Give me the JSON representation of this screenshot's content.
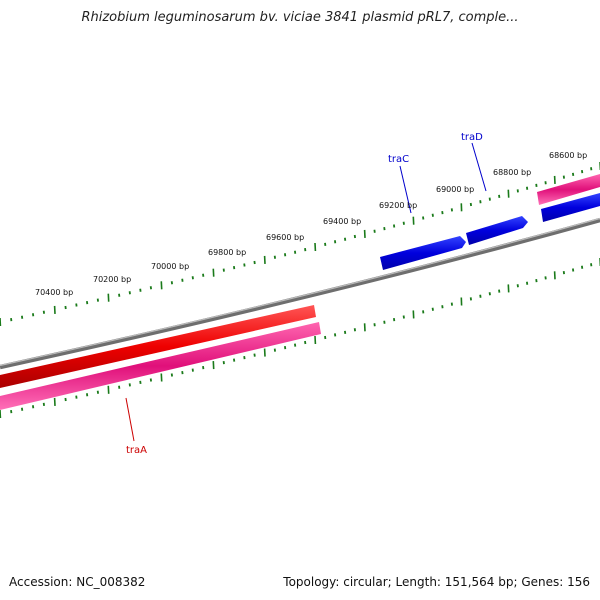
{
  "title": "Rhizobium leguminosarum bv. viciae 3841 plasmid pRL7, comple...",
  "footer": {
    "accession": "Accession: NC_008382",
    "summary": "Topology: circular; Length: 151,564 bp; Genes: 156"
  },
  "ruler_labels": [
    "68600 bp",
    "68800 bp",
    "69000 bp",
    "69200 bp",
    "69400 bp",
    "69600 bp",
    "69800 bp",
    "70000 bp",
    "70200 bp",
    "70400 bp"
  ],
  "genes": [
    {
      "name": "traA",
      "color": "#cc0000"
    },
    {
      "name": "traC",
      "color": "#0000cc"
    },
    {
      "name": "traD",
      "color": "#0000cc"
    }
  ],
  "colors": {
    "backbone": "#808080",
    "forward_red": "#ff0000",
    "reverse_pink": "#ff2288",
    "blue_gene": "#0000ee",
    "tick": "#1a7a1a"
  }
}
